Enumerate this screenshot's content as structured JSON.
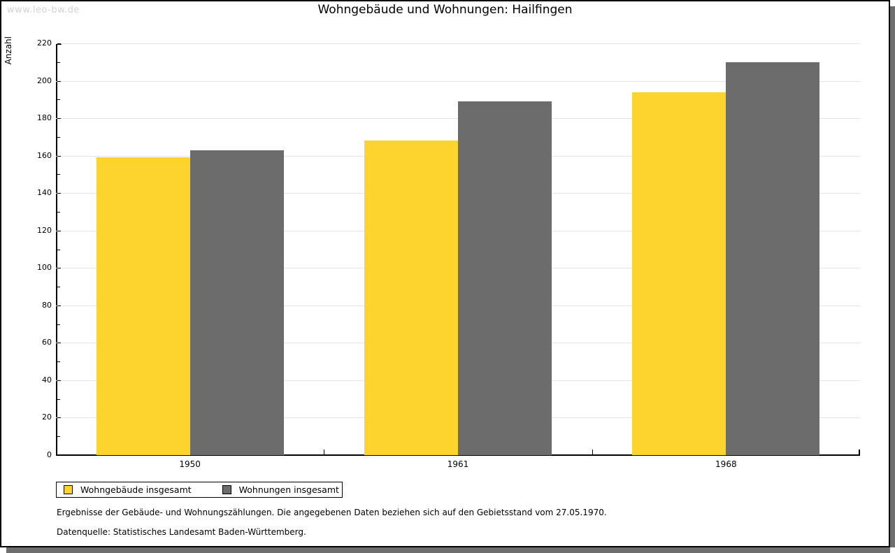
{
  "watermark": "www.leo-bw.de",
  "chart_data": {
    "type": "bar",
    "title": "Wohngebäude und Wohnungen: Hailfingen",
    "ylabel": "Anzahl",
    "xlabel": "",
    "categories": [
      "1950",
      "1961",
      "1968"
    ],
    "series": [
      {
        "name": "Wohngebäude insgesamt",
        "color": "#fcd42d",
        "values": [
          159,
          168,
          194
        ]
      },
      {
        "name": "Wohnungen insgesamt",
        "color": "#6c6c6c",
        "values": [
          163,
          189,
          210
        ]
      }
    ],
    "ylim": [
      0,
      220
    ],
    "ytick_step": 20,
    "yminor_step": 10,
    "grid": true,
    "legend_position": "bottom-left"
  },
  "footnotes": [
    "Ergebnisse der Gebäude- und Wohnungszählungen. Die angegebenen Daten beziehen sich auf den Gebietsstand vom 27.05.1970.",
    "Datenquelle: Statistisches Landesamt Baden-Württemberg."
  ],
  "colors": {
    "gridline": "#e4e4e4",
    "axis": "#000000",
    "watermark": "#d3d3d3",
    "shadow": "#6e6e6e"
  }
}
